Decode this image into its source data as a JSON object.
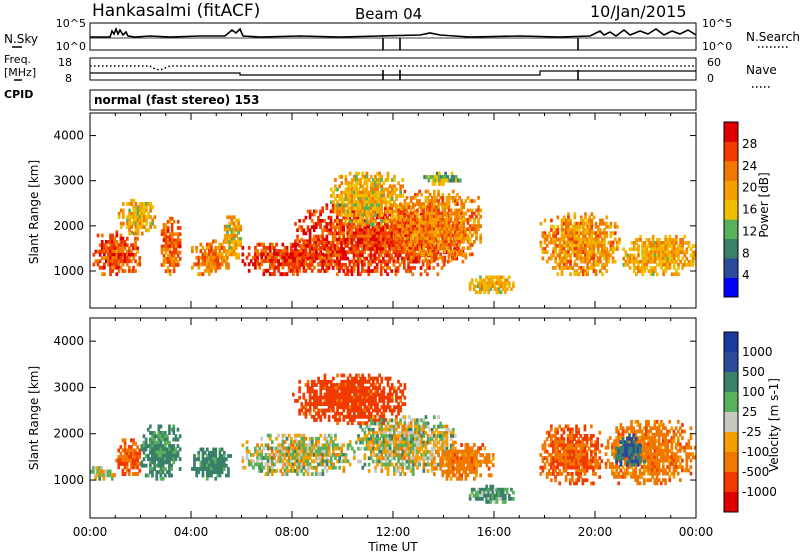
{
  "header": {
    "station": "Hankasalmi (fitACF)",
    "beam": "Beam 04",
    "date": "10/Jan/2015"
  },
  "noise_panel": {
    "left_label": "N.Sky",
    "left_ticks": [
      "10^5",
      "10^0"
    ],
    "right_ticks": [
      "10^5",
      "10^0"
    ],
    "right_label": "N.Search"
  },
  "freq_panel": {
    "left_label_1": "Freq.",
    "left_label_2": "[MHz]",
    "left_ticks": [
      "18",
      "8"
    ],
    "right_ticks": [
      "60",
      "0"
    ],
    "right_label": "Nave"
  },
  "cpid_panel": {
    "label": "CPID",
    "text": "normal (fast stereo) 153"
  },
  "colors": {
    "scale": [
      "#0000ff",
      "#2a4a9a",
      "#3a7f6a",
      "#58b15a",
      "#f0c000",
      "#f5a000",
      "#f07800",
      "#f03a00",
      "#e00000"
    ],
    "ground_scatter": "#c8c8c0",
    "fill_orange": "#f08000"
  },
  "chart_data": [
    {
      "type": "heatmap",
      "panel": "power",
      "xlabel": "",
      "ylabel": "Slant Range [km]",
      "x_unit": "hours UT",
      "xlim": [
        0,
        24
      ],
      "ylim": [
        180,
        4500
      ],
      "y_ticks": [
        1000,
        2000,
        3000,
        4000
      ],
      "colorbar": {
        "label": "Power [dB]",
        "ticks": [
          4,
          8,
          12,
          16,
          20,
          24,
          28
        ],
        "range": [
          0,
          32
        ]
      },
      "echo_regions": [
        {
          "x": [
            0.1,
            2.0
          ],
          "y": [
            900,
            1900
          ],
          "value": 26
        },
        {
          "x": [
            1.1,
            2.6
          ],
          "y": [
            1800,
            2600
          ],
          "value": 18
        },
        {
          "x": [
            2.8,
            3.6
          ],
          "y": [
            900,
            2200
          ],
          "value": 24
        },
        {
          "x": [
            4.0,
            5.6
          ],
          "y": [
            900,
            1700
          ],
          "value": 23
        },
        {
          "x": [
            5.3,
            6.0
          ],
          "y": [
            1200,
            2300
          ],
          "value": 18
        },
        {
          "x": [
            6.0,
            10.0
          ],
          "y": [
            900,
            1700
          ],
          "value": 27
        },
        {
          "x": [
            8.0,
            14.8
          ],
          "y": [
            900,
            2500
          ],
          "value": 27
        },
        {
          "x": [
            9.5,
            12.5
          ],
          "y": [
            2000,
            3200
          ],
          "value": 18
        },
        {
          "x": [
            12.0,
            15.5
          ],
          "y": [
            1200,
            2800
          ],
          "value": 22
        },
        {
          "x": [
            13.2,
            14.7
          ],
          "y": [
            2900,
            3200
          ],
          "value": 13
        },
        {
          "x": [
            15.0,
            16.8
          ],
          "y": [
            500,
            900
          ],
          "value": 18
        },
        {
          "x": [
            17.8,
            21.0
          ],
          "y": [
            900,
            2300
          ],
          "value": 21
        },
        {
          "x": [
            21.0,
            24.0
          ],
          "y": [
            900,
            1800
          ],
          "value": 19
        }
      ]
    },
    {
      "type": "heatmap",
      "panel": "velocity",
      "xlabel": "Time UT",
      "ylabel": "Slant Range [km]",
      "x_unit": "hours UT",
      "xlim": [
        0,
        24
      ],
      "ylim": [
        180,
        4500
      ],
      "y_ticks": [
        1000,
        2000,
        3000,
        4000
      ],
      "x_tick_labels": [
        "00:00",
        "04:00",
        "08:00",
        "12:00",
        "16:00",
        "20:00",
        "00:00"
      ],
      "colorbar": {
        "label": "Velocity [m s-1]",
        "ticks": [
          1000,
          500,
          100,
          25,
          -25,
          -100,
          -500,
          -1000
        ]
      },
      "echo_regions": [
        {
          "x": [
            0.0,
            1.0
          ],
          "y": [
            1000,
            1300
          ],
          "value": 0
        },
        {
          "x": [
            1.0,
            2.0
          ],
          "y": [
            1100,
            1900
          ],
          "value": -300
        },
        {
          "x": [
            2.0,
            3.6
          ],
          "y": [
            1000,
            2200
          ],
          "value": 150
        },
        {
          "x": [
            4.0,
            5.6
          ],
          "y": [
            1000,
            1700
          ],
          "value": 200
        },
        {
          "x": [
            6.0,
            10.5
          ],
          "y": [
            1100,
            2000
          ],
          "value": 0
        },
        {
          "x": [
            8.0,
            12.5
          ],
          "y": [
            2200,
            3300
          ],
          "value": -400
        },
        {
          "x": [
            10.5,
            14.5
          ],
          "y": [
            1100,
            2400
          ],
          "value": 0
        },
        {
          "x": [
            13.5,
            16.0
          ],
          "y": [
            1000,
            1800
          ],
          "value": -200
        },
        {
          "x": [
            15.0,
            16.8
          ],
          "y": [
            500,
            900
          ],
          "value": 100
        },
        {
          "x": [
            17.8,
            20.3
          ],
          "y": [
            900,
            2200
          ],
          "value": -300
        },
        {
          "x": [
            20.3,
            24.0
          ],
          "y": [
            900,
            2300
          ],
          "value": -200
        },
        {
          "x": [
            20.8,
            22.0
          ],
          "y": [
            1300,
            2000
          ],
          "value": 400
        }
      ]
    }
  ]
}
